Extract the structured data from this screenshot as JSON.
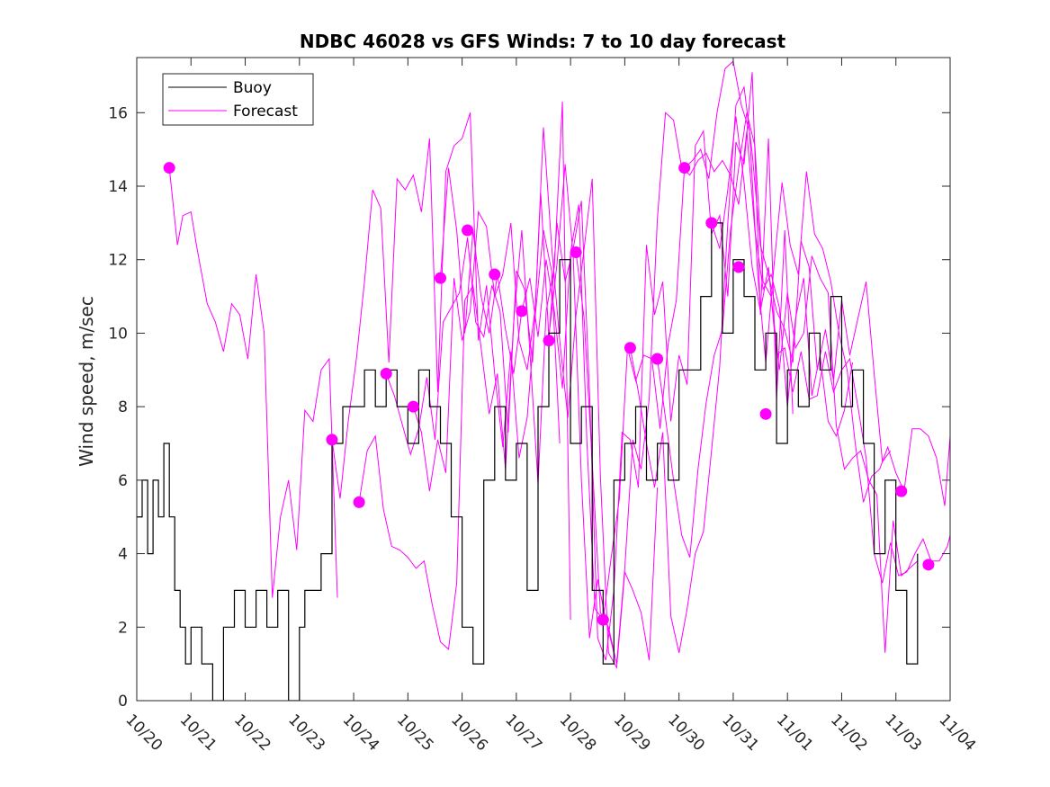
{
  "chart_data": {
    "type": "line",
    "title": "NDBC 46028 vs GFS Winds: 7 to 10 day forecast",
    "xlabel": "",
    "ylabel": "Wind speed, m/sec",
    "xlim": [
      0,
      15
    ],
    "ylim": [
      0,
      17.5
    ],
    "x_tick_labels": [
      "10/20",
      "10/21",
      "10/22",
      "10/23",
      "10/24",
      "10/25",
      "10/26",
      "10/27",
      "10/28",
      "10/29",
      "10/30",
      "10/31",
      "11/01",
      "11/02",
      "11/03",
      "11/04"
    ],
    "y_ticks": [
      0,
      2,
      4,
      6,
      8,
      10,
      12,
      14,
      16
    ],
    "legend": {
      "position": "top-left",
      "entries": [
        {
          "name": "Buoy",
          "color": "#000000"
        },
        {
          "name": "Forecast",
          "color": "#ff00ff"
        }
      ]
    },
    "series": [
      {
        "name": "Buoy",
        "color": "#000000",
        "style": "step",
        "x": [
          0,
          0.1,
          0.2,
          0.3,
          0.4,
          0.5,
          0.6,
          0.7,
          0.8,
          0.9,
          1.0,
          1.2,
          1.4,
          1.6,
          1.8,
          2.0,
          2.2,
          2.4,
          2.6,
          2.8,
          3.0,
          3.1,
          3.2,
          3.4,
          3.6,
          3.8,
          4.0,
          4.2,
          4.4,
          4.6,
          4.8,
          5.0,
          5.2,
          5.4,
          5.6,
          5.8,
          6.0,
          6.2,
          6.4,
          6.6,
          6.8,
          7.0,
          7.2,
          7.4,
          7.6,
          7.8,
          8.0,
          8.2,
          8.4,
          8.6,
          8.8,
          9.0,
          9.2,
          9.4,
          9.6,
          9.8,
          10.0,
          10.2,
          10.4,
          10.6,
          10.8,
          11.0,
          11.2,
          11.4,
          11.6,
          11.8,
          12.0,
          12.2,
          12.4,
          12.6,
          12.8,
          13.0,
          13.2,
          13.4,
          13.6,
          13.8,
          14.0,
          14.2,
          14.4
        ],
        "y": [
          5,
          6,
          4,
          6,
          5,
          7,
          5,
          3,
          2,
          1,
          2,
          1,
          0,
          2,
          3,
          2,
          3,
          2,
          3,
          0,
          2,
          3,
          3,
          4,
          7,
          8,
          8,
          9,
          8,
          9,
          8,
          7,
          9,
          8,
          7,
          5,
          2,
          1,
          6,
          8,
          6,
          7,
          3,
          8,
          10,
          12,
          7,
          8,
          3,
          1,
          6,
          7,
          8,
          6,
          7,
          6,
          9,
          9,
          11,
          13,
          10,
          12,
          11,
          9,
          10,
          7,
          9,
          8,
          10,
          9,
          11,
          8,
          9,
          7,
          4,
          6,
          3,
          1,
          4
        ]
      },
      {
        "name": "Forecast",
        "color": "#ff00ff",
        "style": "line",
        "lines": [
          {
            "x": [
              0.6,
              0.75,
              0.85,
              1.0,
              1.1,
              1.3,
              1.45,
              1.6,
              1.75,
              1.9,
              2.05,
              2.2,
              2.35,
              2.5,
              2.65,
              2.8,
              2.95,
              3.1,
              3.25,
              3.4,
              3.55,
              3.7
            ],
            "y": [
              14.5,
              12.4,
              13.2,
              13.3,
              12.4,
              10.8,
              10.3,
              9.5,
              10.8,
              10.5,
              9.3,
              11.6,
              10.0,
              2.8,
              5.0,
              6.0,
              4.1,
              7.9,
              7.6,
              9.0,
              9.3,
              2.8
            ]
          },
          {
            "x": [
              3.6,
              3.75,
              3.9,
              4.05,
              4.2,
              4.35,
              4.5,
              4.65,
              4.8,
              4.95,
              5.1,
              5.25,
              5.4,
              5.55,
              5.7,
              5.85,
              6.0,
              6.15,
              6.3,
              6.45,
              6.6,
              6.75,
              6.9,
              7.05,
              7.2,
              7.35,
              7.5,
              7.65,
              7.8
            ],
            "y": [
              7.1,
              5.5,
              7.6,
              9.3,
              11.4,
              13.9,
              13.4,
              9.2,
              14.2,
              13.9,
              14.3,
              13.3,
              15.3,
              8.4,
              14.4,
              15.1,
              15.3,
              16.0,
              9.8,
              11.3,
              8.9,
              6.9,
              9.5,
              6.6,
              7.7,
              10.5,
              12.8,
              11.7,
              7.0
            ]
          },
          {
            "x": [
              4.1,
              4.25,
              4.4,
              4.55,
              4.7,
              4.85,
              5.0,
              5.15,
              5.3,
              5.45,
              5.6,
              5.75,
              5.9,
              6.05,
              6.2,
              6.35,
              6.5,
              6.65,
              6.8,
              6.95,
              7.1,
              7.25,
              7.4,
              7.55,
              7.7,
              7.85,
              8.0
            ],
            "y": [
              5.4,
              6.8,
              7.2,
              5.2,
              4.2,
              4.1,
              3.9,
              3.6,
              3.8,
              2.6,
              1.6,
              1.4,
              3.2,
              10.9,
              11.3,
              9.6,
              7.8,
              8.9,
              6.3,
              10.3,
              12.8,
              9.5,
              5.9,
              10.6,
              11.8,
              16.3,
              2.2
            ]
          },
          {
            "x": [
              4.6,
              4.75,
              4.9,
              5.05,
              5.2,
              5.35,
              5.5,
              5.65,
              5.8,
              5.95,
              6.1,
              6.25,
              6.4,
              6.55,
              6.7,
              6.85,
              7.0,
              7.15,
              7.3,
              7.45,
              7.6,
              7.75,
              7.9,
              8.05,
              8.2,
              8.35,
              8.5,
              8.65,
              8.8
            ],
            "y": [
              8.9,
              8.3,
              7.5,
              6.7,
              7.4,
              8.8,
              7.1,
              10.3,
              10.7,
              11.1,
              12.6,
              10.3,
              9.9,
              11.3,
              10.6,
              7.3,
              11.7,
              11.2,
              9.2,
              13.8,
              9.9,
              11.9,
              14.6,
              12.1,
              6.0,
              1.7,
              3.3,
              2.2,
              1.3
            ]
          },
          {
            "x": [
              5.1,
              5.25,
              5.4,
              5.55,
              5.7,
              5.85,
              6.0,
              6.15,
              6.3,
              6.45,
              6.6,
              6.75,
              6.9,
              7.05,
              7.2,
              7.35,
              7.5,
              7.65,
              7.8,
              7.95,
              8.1,
              8.25,
              8.4,
              8.55,
              8.7,
              8.85,
              9.0,
              9.15,
              9.3,
              9.45,
              9.6
            ],
            "y": [
              8.0,
              7.3,
              5.7,
              7.1,
              6.2,
              11.5,
              9.8,
              10.6,
              13.3,
              12.9,
              11.0,
              11.6,
              13.0,
              9.8,
              9.0,
              10.7,
              15.6,
              12.4,
              9.8,
              7.7,
              10.5,
              12.3,
              14.2,
              6.1,
              1.3,
              0.9,
              3.5,
              3.0,
              2.4,
              1.1,
              5.8
            ]
          },
          {
            "x": [
              5.6,
              5.75,
              5.9,
              6.05,
              6.2,
              6.35,
              6.5,
              6.65,
              6.8,
              6.95,
              7.1,
              7.25,
              7.4,
              7.55,
              7.7,
              7.85,
              8.0,
              8.15,
              8.3,
              8.45,
              8.6,
              8.75,
              8.9,
              9.05,
              9.2,
              9.35,
              9.5,
              9.65,
              9.8,
              9.95,
              10.1
            ],
            "y": [
              11.5,
              14.5,
              12.8,
              10.0,
              12.8,
              11.0,
              10.0,
              11.6,
              10.1,
              8.9,
              10.6,
              11.5,
              9.9,
              12.0,
              10.6,
              8.5,
              12.2,
              13.5,
              7.1,
              2.5,
              2.2,
              3.9,
              5.5,
              9.6,
              8.7,
              9.4,
              9.3,
              7.4,
              9.7,
              10.9,
              14.5
            ]
          },
          {
            "x": [
              7.6,
              7.75,
              7.9,
              8.05,
              8.2,
              8.35,
              8.5,
              8.65,
              8.8,
              8.95,
              9.1,
              9.25,
              9.4,
              9.55,
              9.7,
              9.85,
              10.0,
              10.15,
              10.3,
              10.45,
              10.6,
              10.75,
              10.9,
              11.05,
              11.2,
              11.35,
              11.5,
              11.65,
              11.8,
              11.95,
              12.1
            ],
            "y": [
              9.8,
              13.0,
              11.4,
              12.3,
              13.6,
              8.4,
              1.7,
              1.1,
              3.0,
              7.3,
              7.1,
              5.8,
              12.4,
              10.5,
              11.4,
              7.6,
              9.4,
              8.6,
              15.1,
              15.5,
              12.7,
              13.2,
              11.0,
              15.2,
              14.6,
              17.1,
              10.5,
              15.3,
              8.2,
              12.8,
              7.8
            ]
          },
          {
            "x": [
              8.1,
              8.25,
              8.4,
              8.55,
              8.7,
              8.85,
              9.0,
              9.15,
              9.3,
              9.45,
              9.6,
              9.75,
              9.9,
              10.05,
              10.2,
              10.35,
              10.5,
              10.65,
              10.8,
              10.95,
              11.1,
              11.25,
              11.4,
              11.55,
              11.7,
              11.85,
              12.0,
              12.15,
              12.3,
              12.45,
              12.6,
              12.75,
              12.9,
              13.05,
              13.2
            ],
            "y": [
              12.2,
              10.4,
              6.5,
              2.4,
              2.0,
              1.0,
              3.6,
              7.1,
              6.3,
              8.2,
              13.1,
              16.0,
              15.8,
              14.5,
              14.3,
              14.7,
              14.9,
              14.4,
              14.7,
              14.3,
              13.5,
              15.5,
              12.8,
              11.2,
              11.6,
              10.7,
              8.0,
              10.4,
              11.5,
              8.3,
              9.4,
              7.6,
              7.2,
              7.9,
              9.2
            ]
          },
          {
            "x": [
              9.1,
              9.25,
              9.4,
              9.55,
              9.7,
              9.85,
              10.0,
              10.15,
              10.3,
              10.45,
              10.6,
              10.75,
              10.9,
              11.05,
              11.2,
              11.35,
              11.5,
              11.65,
              11.8,
              11.95,
              12.1,
              12.25,
              12.4,
              12.55,
              12.7,
              12.85,
              13.0,
              13.15,
              13.3,
              13.45,
              13.6,
              13.75,
              13.9
            ],
            "y": [
              9.6,
              8.4,
              7.0,
              5.8,
              7.3,
              2.3,
              1.3,
              2.5,
              4.0,
              4.6,
              6.8,
              9.1,
              13.0,
              16.2,
              16.7,
              14.9,
              12.4,
              11.6,
              10.6,
              10.1,
              9.2,
              12.5,
              11.8,
              9.0,
              10.1,
              8.7,
              10.9,
              9.4,
              10.4,
              11.4,
              8.9,
              6.5,
              6.8
            ]
          },
          {
            "x": [
              9.6,
              9.75,
              9.9,
              10.05,
              10.2,
              10.35,
              10.5,
              10.65,
              10.8,
              10.95,
              11.1,
              11.25,
              11.4,
              11.55,
              11.7,
              11.85,
              12.0,
              12.15,
              12.3,
              12.45,
              12.6,
              12.75,
              12.9,
              13.05,
              13.2,
              13.35,
              13.5,
              13.65,
              13.8,
              13.95,
              14.1,
              14.25,
              14.4
            ],
            "y": [
              9.3,
              7.7,
              6.0,
              4.5,
              3.9,
              6.3,
              8.1,
              9.4,
              10.1,
              12.8,
              14.5,
              16.0,
              15.1,
              11.4,
              11.0,
              9.0,
              11.1,
              9.6,
              10.0,
              12.1,
              11.5,
              11.1,
              7.5,
              6.3,
              6.6,
              6.8,
              6.0,
              5.6,
              1.3,
              4.9,
              3.4,
              3.6,
              3.8
            ]
          },
          {
            "x": [
              10.1,
              10.25,
              10.4,
              10.55,
              10.7,
              10.85,
              11.0,
              11.15,
              11.3,
              11.45,
              11.6,
              11.75,
              11.9,
              12.05,
              12.2,
              12.35,
              12.5,
              12.65,
              12.8,
              12.95,
              13.1,
              13.25,
              13.4,
              13.55,
              13.7,
              13.85,
              14.0,
              14.15,
              14.3,
              14.45,
              14.6,
              14.75,
              14.9,
              15.0
            ],
            "y": [
              14.5,
              14.7,
              15.0,
              14.2,
              16.0,
              17.2,
              17.4,
              16.2,
              15.5,
              11.6,
              9.2,
              11.8,
              14.1,
              12.4,
              11.6,
              14.4,
              12.7,
              12.3,
              11.4,
              10.0,
              9.0,
              7.0,
              5.4,
              6.1,
              6.3,
              6.9,
              6.2,
              5.7,
              7.4,
              7.4,
              7.2,
              6.6,
              5.3,
              7.2
            ]
          },
          {
            "x": [
              10.6,
              10.75,
              10.9,
              11.05,
              11.2,
              11.35,
              11.5,
              11.65,
              11.8,
              11.95,
              12.1,
              12.25,
              12.4,
              12.55,
              12.7,
              12.85,
              13.0,
              13.15,
              13.3,
              13.45,
              13.6,
              13.75,
              13.9,
              14.05,
              14.2,
              14.35,
              14.5,
              14.65,
              14.8,
              14.95,
              15.0
            ],
            "y": [
              13.0,
              12.3,
              13.9,
              15.9,
              14.1,
              11.8,
              10.6,
              11.8,
              9.4,
              9.6,
              8.4,
              9.5,
              8.2,
              8.3,
              9.5,
              8.4,
              9.0,
              9.3,
              8.0,
              6.6,
              4.0,
              3.2,
              4.3,
              3.4,
              3.5,
              4.0,
              4.4,
              3.8,
              3.8,
              4.2,
              4.5
            ]
          }
        ],
        "markers": {
          "x": [
            0.6,
            3.6,
            4.1,
            4.6,
            5.1,
            5.6,
            6.1,
            6.6,
            7.1,
            7.6,
            8.1,
            8.6,
            9.1,
            9.6,
            10.1,
            10.6,
            11.1,
            11.6,
            14.1,
            14.6
          ],
          "y": [
            14.5,
            7.1,
            5.4,
            8.9,
            8.0,
            11.5,
            12.8,
            11.6,
            10.6,
            9.8,
            12.2,
            2.2,
            9.6,
            9.3,
            14.5,
            13.0,
            11.8,
            7.8,
            5.7,
            3.7
          ]
        }
      }
    ]
  }
}
